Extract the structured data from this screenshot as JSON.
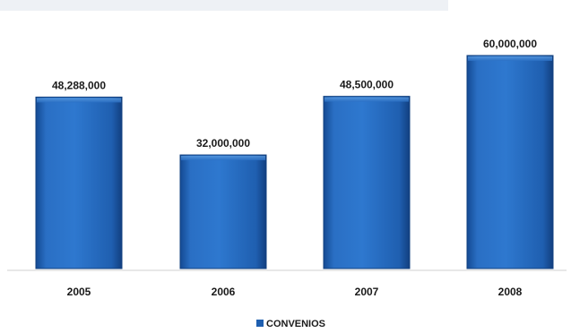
{
  "chart_data": {
    "type": "bar",
    "title": "",
    "xlabel": "",
    "ylabel": "",
    "categories": [
      "2005",
      "2006",
      "2007",
      "2008"
    ],
    "series": [
      {
        "name": "CONVENIOS",
        "values": [
          48288000,
          32000000,
          48500000,
          60000000
        ],
        "labels": [
          "48,288,000",
          "32,000,000",
          "48,500,000",
          "60,000,000"
        ],
        "color": "#1f5fb0"
      }
    ],
    "ylim": [
      0,
      60000000
    ],
    "grid": false,
    "legend_position": "bottom"
  }
}
